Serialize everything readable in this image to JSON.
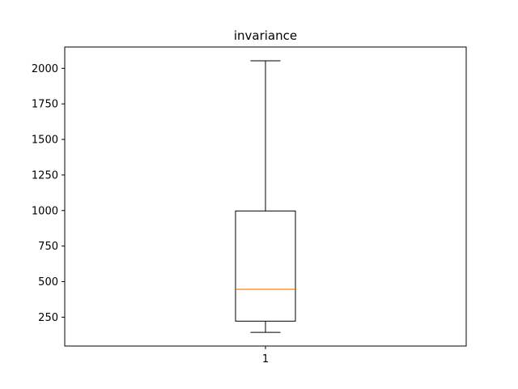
{
  "chart_data": {
    "type": "boxplot",
    "title": "invariance",
    "xlabel": "",
    "ylabel": "",
    "categories": [
      "1"
    ],
    "boxes": [
      {
        "category": "1",
        "whisker_low": 143,
        "q1": 222,
        "median": 446,
        "q3": 997,
        "whisker_high": 2053
      }
    ],
    "ylim": [
      47,
      2150
    ],
    "yticks": [
      250,
      500,
      750,
      1000,
      1250,
      1500,
      1750,
      2000
    ],
    "grid": false,
    "colors": {
      "box": "#000000",
      "median": "#ff7f0e"
    }
  }
}
